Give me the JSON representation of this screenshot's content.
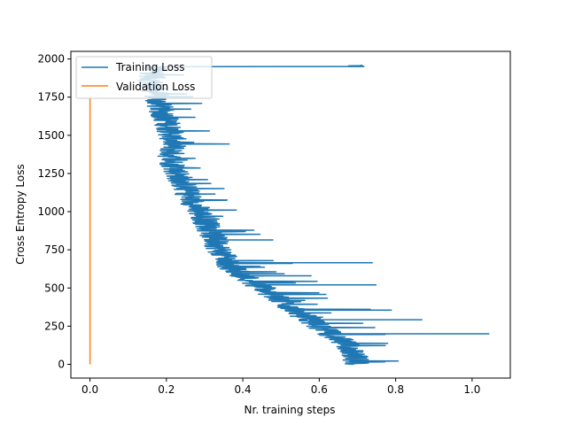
{
  "chart_data": {
    "type": "line",
    "xlabel": "Nr. training steps",
    "ylabel": "Cross Entropy Loss",
    "xlim": [
      -0.05,
      1.1
    ],
    "ylim": [
      -90,
      2050
    ],
    "x_ticks": [
      "0.0",
      "0.2",
      "0.4",
      "0.6",
      "0.8",
      "1.0"
    ],
    "x_tick_values": [
      0.0,
      0.2,
      0.4,
      0.6,
      0.8,
      1.0
    ],
    "y_ticks": [
      "0",
      "250",
      "500",
      "750",
      "1000",
      "1250",
      "1500",
      "1750",
      "2000"
    ],
    "y_tick_values": [
      0,
      250,
      500,
      750,
      1000,
      1250,
      1500,
      1750,
      2000
    ],
    "grid": false,
    "legend_position": "upper-left",
    "series": [
      {
        "name": "Training Loss",
        "color": "#1f77b4",
        "note_trend": [
          [
            0.17,
            1950
          ],
          [
            0.16,
            1850
          ],
          [
            0.18,
            1700
          ],
          [
            0.2,
            1600
          ],
          [
            0.22,
            1450
          ],
          [
            0.21,
            1350
          ],
          [
            0.24,
            1200
          ],
          [
            0.26,
            1100
          ],
          [
            0.3,
            950
          ],
          [
            0.33,
            800
          ],
          [
            0.36,
            650
          ],
          [
            0.42,
            550
          ],
          [
            0.48,
            450
          ],
          [
            0.55,
            330
          ],
          [
            0.6,
            250
          ],
          [
            0.66,
            150
          ],
          [
            0.69,
            80
          ],
          [
            0.7,
            0
          ]
        ]
      },
      {
        "name": "Validation Loss",
        "color": "#ff7f0e",
        "x": [
          0.0,
          0.0
        ],
        "y": [
          0,
          1750
        ]
      }
    ]
  }
}
